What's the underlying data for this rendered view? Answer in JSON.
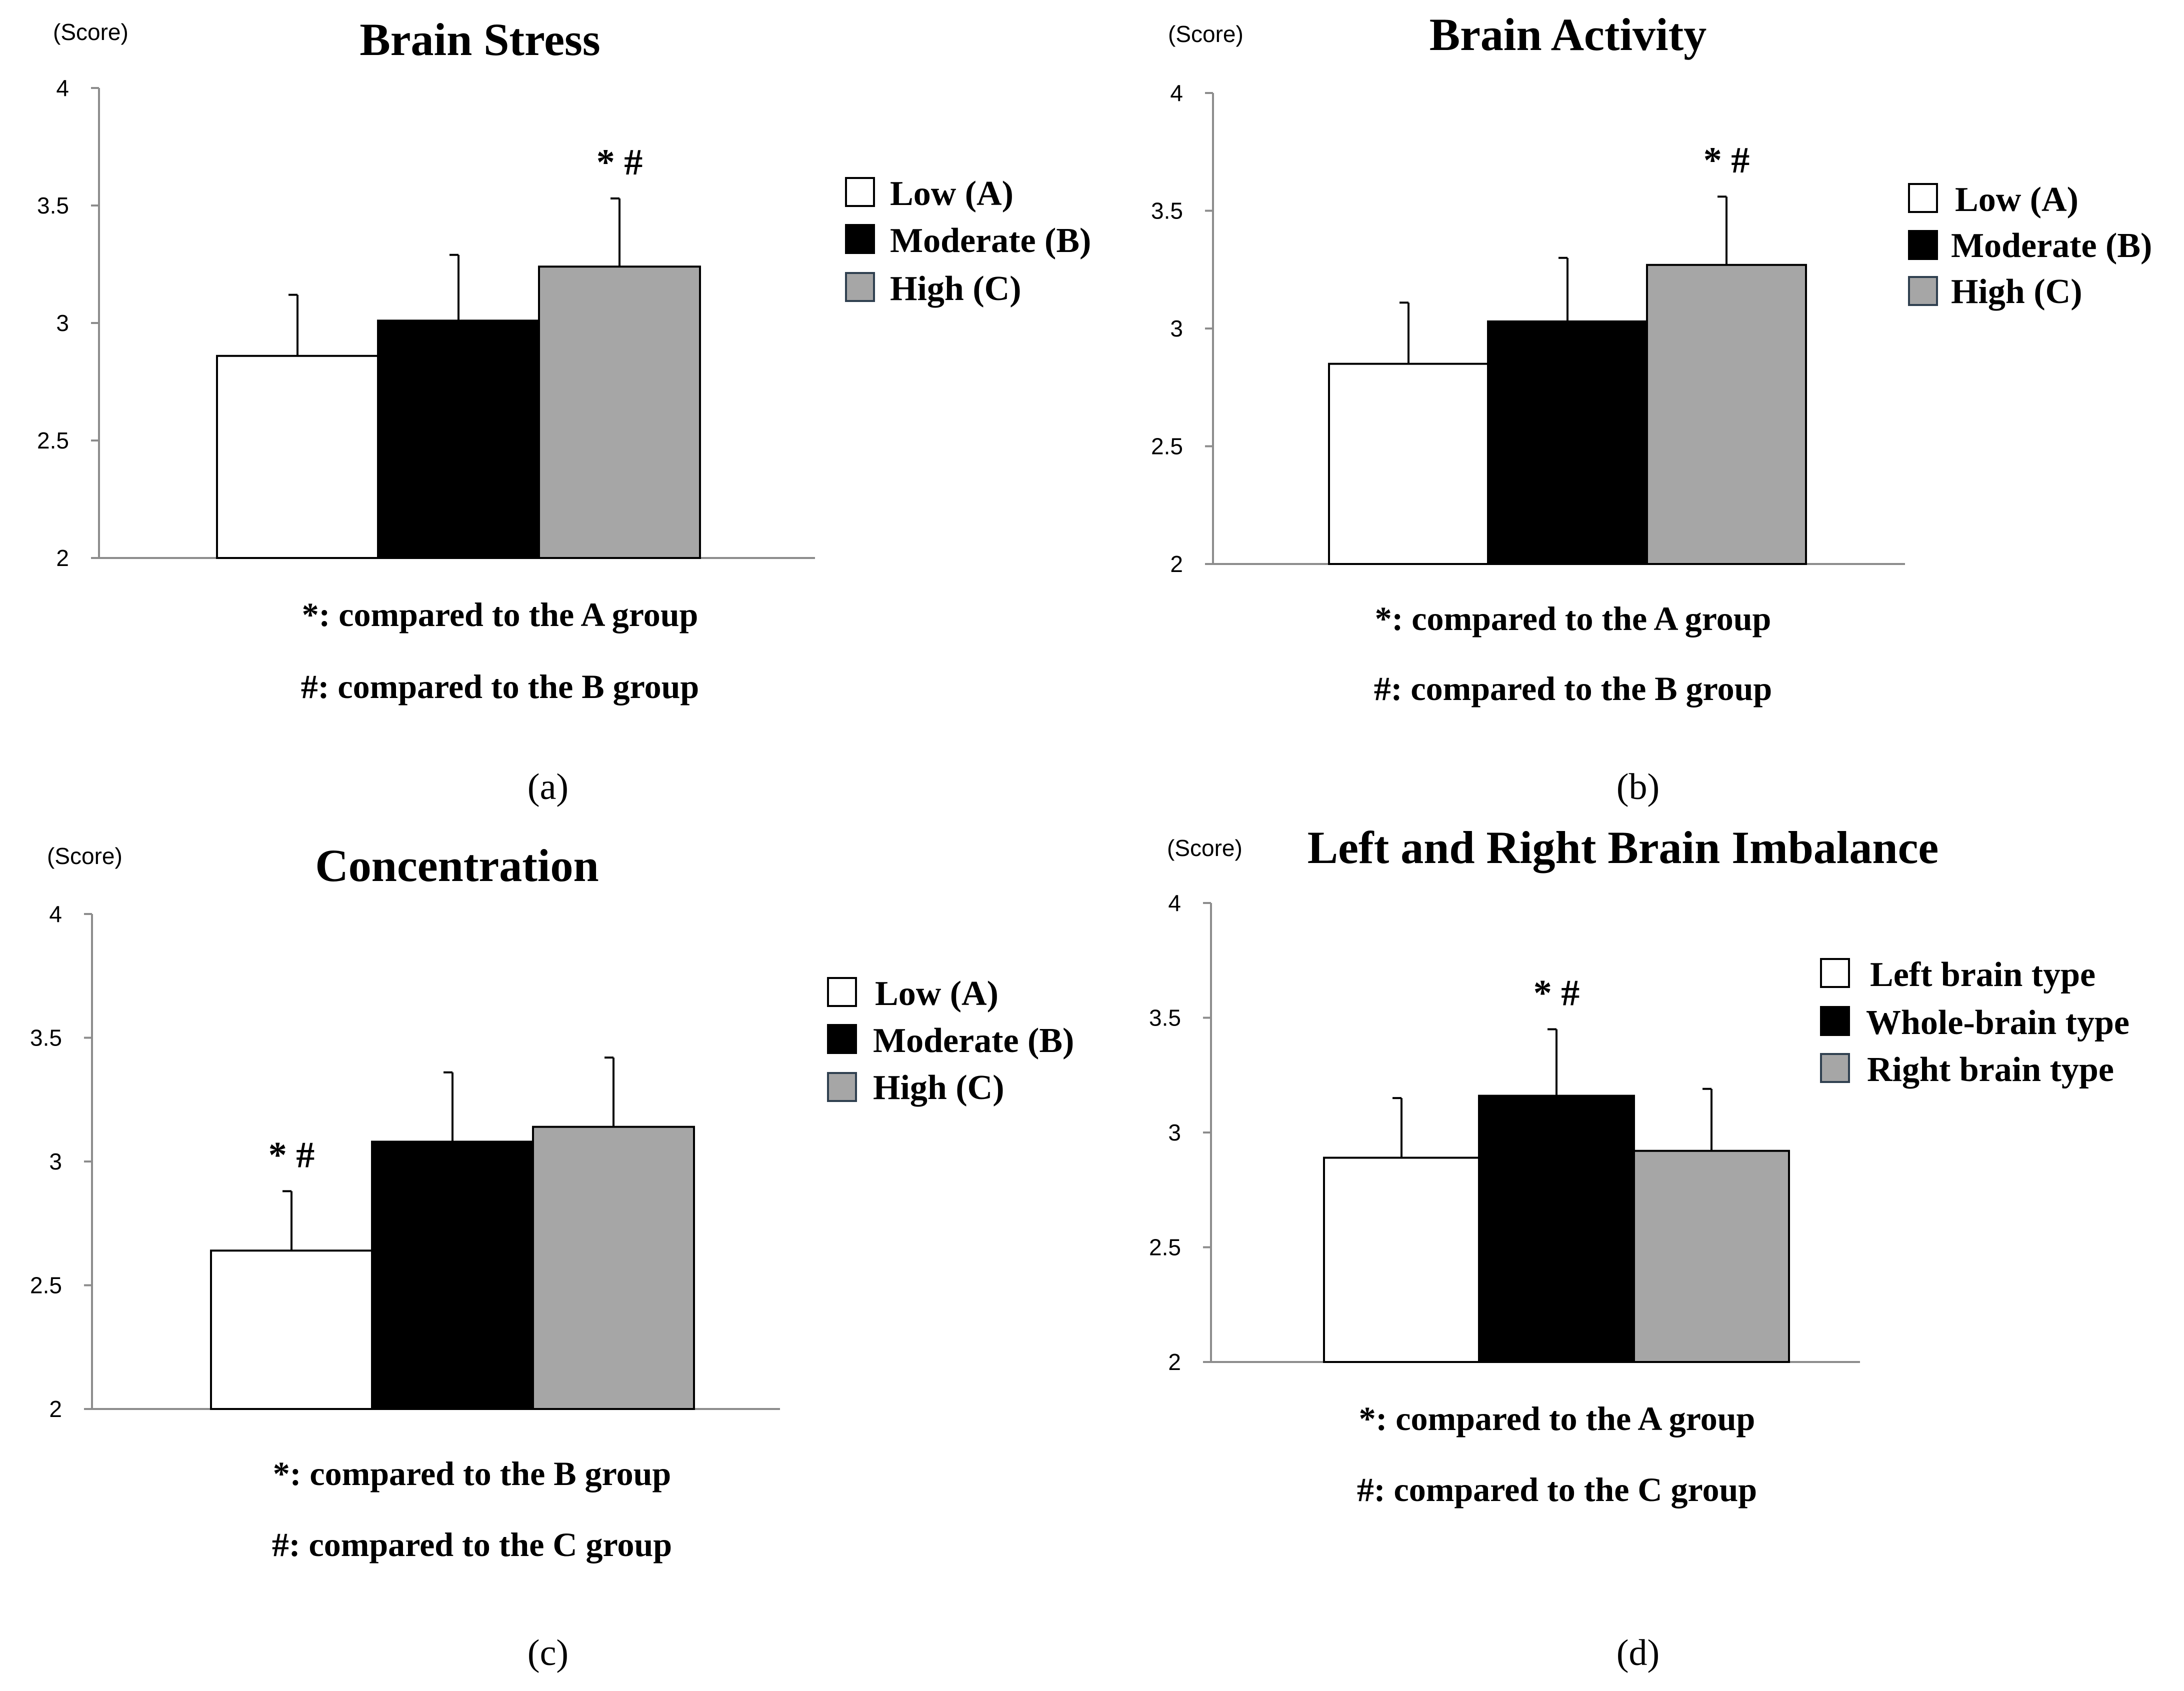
{
  "chart_data": [
    {
      "type": "bar",
      "title": "Brain Stress",
      "panel_label": "(a)",
      "ylabel": "(Score)",
      "ylim": [
        2,
        4
      ],
      "yticks": [
        2,
        2.5,
        3,
        3.5,
        4
      ],
      "ytick_labels": [
        "2",
        "2.5",
        "3",
        "3.5",
        "4"
      ],
      "categories": [
        "Low (A)",
        "Moderate (B)",
        "High (C)"
      ],
      "values": [
        2.86,
        3.01,
        3.24
      ],
      "errors": [
        0.26,
        0.28,
        0.29
      ],
      "colors": [
        "#ffffff",
        "#000000",
        "#a6a6a6"
      ],
      "significance": [
        {
          "index": 2,
          "text": "* #"
        }
      ],
      "legend": [
        "Low (A)",
        "Moderate (B)",
        "High (C)"
      ],
      "notes": [
        "*: compared to the A group",
        "#: compared to the B group"
      ]
    },
    {
      "type": "bar",
      "title": "Brain Activity",
      "panel_label": "(b)",
      "ylabel": "(Score)",
      "ylim": [
        2,
        4
      ],
      "yticks": [
        2,
        2.5,
        3,
        3.5,
        4
      ],
      "ytick_labels": [
        "2",
        "2.5",
        "3",
        "3.5",
        "4"
      ],
      "categories": [
        "Low (A)",
        "Moderate (B)",
        "High (C)"
      ],
      "values": [
        2.85,
        3.03,
        3.27
      ],
      "errors": [
        0.26,
        0.27,
        0.29
      ],
      "colors": [
        "#ffffff",
        "#000000",
        "#a6a6a6"
      ],
      "significance": [
        {
          "index": 2,
          "text": "* #"
        }
      ],
      "legend": [
        "Low (A)",
        "Moderate (B)",
        "High (C)"
      ],
      "notes": [
        "*: compared to the A group",
        "#: compared to the B group"
      ]
    },
    {
      "type": "bar",
      "title": "Concentration",
      "panel_label": "(c)",
      "ylabel": "(Score)",
      "ylim": [
        2,
        4
      ],
      "yticks": [
        2,
        2.5,
        3,
        3.5,
        4
      ],
      "ytick_labels": [
        "2",
        "2.5",
        "3",
        "3.5",
        "4"
      ],
      "categories": [
        "Low (A)",
        "Moderate (B)",
        "High (C)"
      ],
      "values": [
        2.64,
        3.08,
        3.14
      ],
      "errors": [
        0.24,
        0.28,
        0.28
      ],
      "colors": [
        "#ffffff",
        "#000000",
        "#a6a6a6"
      ],
      "significance": [
        {
          "index": 0,
          "text": "* #"
        }
      ],
      "legend": [
        "Low (A)",
        "Moderate (B)",
        "High (C)"
      ],
      "notes": [
        "*: compared to the B group",
        "#: compared to the C group"
      ]
    },
    {
      "type": "bar",
      "title": "Left and Right Brain Imbalance",
      "panel_label": "(d)",
      "ylabel": "(Score)",
      "ylim": [
        2,
        4
      ],
      "yticks": [
        2,
        2.5,
        3,
        3.5,
        4
      ],
      "ytick_labels": [
        "2",
        "2.5",
        "3",
        "3.5",
        "4"
      ],
      "categories": [
        "Left brain type",
        "Whole-brain type",
        "Right brain type"
      ],
      "values": [
        2.89,
        3.16,
        2.92
      ],
      "errors": [
        0.26,
        0.29,
        0.27
      ],
      "colors": [
        "#ffffff",
        "#000000",
        "#a6a6a6"
      ],
      "significance": [
        {
          "index": 1,
          "text": "* #"
        }
      ],
      "legend": [
        "Left brain type",
        "Whole-brain type",
        "Right brain type"
      ],
      "notes": [
        "*: compared to the A group",
        "#: compared to the C group"
      ]
    }
  ]
}
